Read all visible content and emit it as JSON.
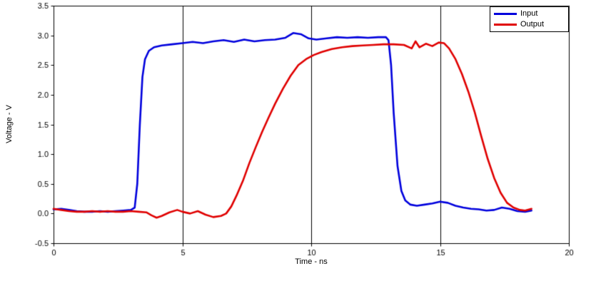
{
  "chart_data": {
    "type": "line",
    "title": "",
    "xlabel": "Time - ns",
    "ylabel": "Voltage - V",
    "xlim": [
      0,
      20
    ],
    "ylim": [
      -0.5,
      3.5
    ],
    "xticks": [
      0,
      5,
      10,
      15,
      20
    ],
    "yticks": [
      -0.5,
      0.0,
      0.5,
      1.0,
      1.5,
      2.0,
      2.5,
      3.0,
      3.5
    ],
    "grid": {
      "vertical_at": [
        5,
        10,
        15
      ],
      "horizontal": false
    },
    "legend": {
      "position": "top-right",
      "entries": [
        {
          "label": "Input",
          "color": "#0000dd"
        },
        {
          "label": "Output",
          "color": "#e00000"
        }
      ]
    },
    "series": [
      {
        "name": "Input",
        "color": "#0000dd",
        "points": [
          [
            0,
            0.07
          ],
          [
            0.3,
            0.08
          ],
          [
            0.6,
            0.06
          ],
          [
            0.9,
            0.04
          ],
          [
            1.2,
            0.03
          ],
          [
            1.5,
            0.03
          ],
          [
            1.8,
            0.04
          ],
          [
            2.1,
            0.03
          ],
          [
            2.4,
            0.04
          ],
          [
            2.7,
            0.05
          ],
          [
            3.0,
            0.06
          ],
          [
            3.15,
            0.1
          ],
          [
            3.25,
            0.5
          ],
          [
            3.35,
            1.5
          ],
          [
            3.45,
            2.3
          ],
          [
            3.55,
            2.6
          ],
          [
            3.7,
            2.74
          ],
          [
            3.9,
            2.8
          ],
          [
            4.2,
            2.83
          ],
          [
            4.6,
            2.85
          ],
          [
            5.0,
            2.87
          ],
          [
            5.4,
            2.89
          ],
          [
            5.8,
            2.87
          ],
          [
            6.2,
            2.9
          ],
          [
            6.6,
            2.92
          ],
          [
            7.0,
            2.89
          ],
          [
            7.4,
            2.93
          ],
          [
            7.8,
            2.9
          ],
          [
            8.2,
            2.92
          ],
          [
            8.6,
            2.93
          ],
          [
            9.0,
            2.96
          ],
          [
            9.3,
            3.04
          ],
          [
            9.6,
            3.02
          ],
          [
            9.9,
            2.95
          ],
          [
            10.2,
            2.93
          ],
          [
            10.6,
            2.95
          ],
          [
            11.0,
            2.97
          ],
          [
            11.4,
            2.96
          ],
          [
            11.8,
            2.97
          ],
          [
            12.2,
            2.96
          ],
          [
            12.6,
            2.97
          ],
          [
            12.9,
            2.97
          ],
          [
            13.0,
            2.92
          ],
          [
            13.1,
            2.5
          ],
          [
            13.2,
            1.7
          ],
          [
            13.35,
            0.8
          ],
          [
            13.5,
            0.38
          ],
          [
            13.65,
            0.22
          ],
          [
            13.85,
            0.15
          ],
          [
            14.1,
            0.13
          ],
          [
            14.4,
            0.15
          ],
          [
            14.7,
            0.17
          ],
          [
            15.0,
            0.2
          ],
          [
            15.3,
            0.18
          ],
          [
            15.6,
            0.13
          ],
          [
            15.9,
            0.1
          ],
          [
            16.2,
            0.08
          ],
          [
            16.5,
            0.07
          ],
          [
            16.8,
            0.05
          ],
          [
            17.1,
            0.06
          ],
          [
            17.4,
            0.1
          ],
          [
            17.7,
            0.08
          ],
          [
            18.0,
            0.04
          ],
          [
            18.3,
            0.03
          ],
          [
            18.55,
            0.05
          ]
        ]
      },
      {
        "name": "Output",
        "color": "#e00000",
        "points": [
          [
            0,
            0.08
          ],
          [
            0.3,
            0.06
          ],
          [
            0.6,
            0.04
          ],
          [
            0.9,
            0.03
          ],
          [
            1.2,
            0.03
          ],
          [
            1.5,
            0.04
          ],
          [
            1.8,
            0.03
          ],
          [
            2.1,
            0.04
          ],
          [
            2.4,
            0.03
          ],
          [
            2.7,
            0.03
          ],
          [
            3.0,
            0.04
          ],
          [
            3.3,
            0.03
          ],
          [
            3.6,
            0.02
          ],
          [
            3.8,
            -0.03
          ],
          [
            4.0,
            -0.07
          ],
          [
            4.2,
            -0.04
          ],
          [
            4.5,
            0.02
          ],
          [
            4.8,
            0.06
          ],
          [
            5.0,
            0.03
          ],
          [
            5.3,
            0.0
          ],
          [
            5.6,
            0.04
          ],
          [
            5.9,
            -0.02
          ],
          [
            6.2,
            -0.06
          ],
          [
            6.5,
            -0.04
          ],
          [
            6.7,
            0.0
          ],
          [
            6.9,
            0.12
          ],
          [
            7.1,
            0.3
          ],
          [
            7.35,
            0.55
          ],
          [
            7.6,
            0.85
          ],
          [
            7.85,
            1.12
          ],
          [
            8.1,
            1.38
          ],
          [
            8.35,
            1.62
          ],
          [
            8.6,
            1.85
          ],
          [
            8.9,
            2.1
          ],
          [
            9.2,
            2.32
          ],
          [
            9.5,
            2.5
          ],
          [
            9.8,
            2.6
          ],
          [
            10.1,
            2.67
          ],
          [
            10.4,
            2.72
          ],
          [
            10.8,
            2.77
          ],
          [
            11.2,
            2.8
          ],
          [
            11.6,
            2.82
          ],
          [
            12.0,
            2.83
          ],
          [
            12.4,
            2.84
          ],
          [
            12.8,
            2.85
          ],
          [
            13.2,
            2.85
          ],
          [
            13.6,
            2.84
          ],
          [
            13.9,
            2.78
          ],
          [
            14.05,
            2.9
          ],
          [
            14.2,
            2.8
          ],
          [
            14.45,
            2.86
          ],
          [
            14.7,
            2.82
          ],
          [
            14.95,
            2.88
          ],
          [
            15.15,
            2.87
          ],
          [
            15.35,
            2.78
          ],
          [
            15.6,
            2.6
          ],
          [
            15.85,
            2.35
          ],
          [
            16.1,
            2.05
          ],
          [
            16.35,
            1.7
          ],
          [
            16.6,
            1.3
          ],
          [
            16.85,
            0.92
          ],
          [
            17.1,
            0.6
          ],
          [
            17.35,
            0.35
          ],
          [
            17.6,
            0.18
          ],
          [
            17.85,
            0.1
          ],
          [
            18.1,
            0.06
          ],
          [
            18.3,
            0.05
          ],
          [
            18.55,
            0.08
          ]
        ]
      }
    ]
  }
}
